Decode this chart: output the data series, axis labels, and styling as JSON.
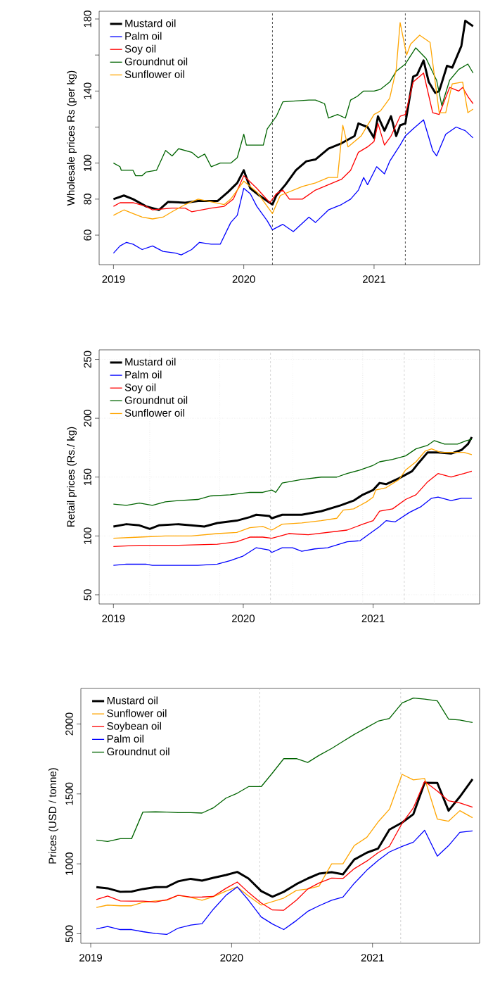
{
  "chart_data": [
    {
      "type": "line",
      "ylabel": "Wholesale prices Rs (per kg)",
      "xlim": [
        2018.89,
        2021.81
      ],
      "ylim": [
        43.6,
        184.3
      ],
      "xticks": [
        2019,
        2020,
        2021
      ],
      "yticks": [
        60,
        80,
        100,
        {
          "value": 120,
          "label": null
        },
        140,
        {
          "value": 160,
          "label": null
        },
        180
      ],
      "legend": "top left",
      "marker": "none",
      "ref_lines": [
        {
          "axis": "x",
          "value": 2020.22,
          "color": "#000000",
          "line_style": "dashed"
        },
        {
          "axis": "x",
          "value": 2021.24,
          "color": "#000000",
          "line_style": "dashed"
        }
      ],
      "series": [
        {
          "name": "Mustard oil",
          "color": "#000000",
          "x": [
            2019.0,
            2019.08,
            2019.15,
            2019.25,
            2019.35,
            2019.42,
            2019.55,
            2019.65,
            2019.8,
            2019.88,
            2019.95,
            2020.0,
            2020.05,
            2020.12,
            2020.18,
            2020.22,
            2020.25,
            2020.32,
            2020.4,
            2020.48,
            2020.55,
            2020.65,
            2020.75,
            2020.85,
            2020.88,
            2020.95,
            2021.0,
            2021.03,
            2021.08,
            2021.13,
            2021.17,
            2021.2,
            2021.24,
            2021.3,
            2021.33,
            2021.38,
            2021.42,
            2021.47,
            2021.5,
            2021.56,
            2021.6,
            2021.67,
            2021.7,
            2021.76
          ],
          "values": [
            80,
            82,
            80,
            76,
            74,
            78.5,
            78,
            79,
            79,
            84,
            89,
            96,
            86,
            82,
            79,
            77,
            82,
            88,
            96,
            101,
            102,
            108,
            111,
            115,
            122,
            120,
            114,
            126,
            118,
            126,
            115,
            121,
            122,
            148,
            149,
            157,
            145,
            139,
            140,
            154,
            153,
            165,
            179,
            176
          ]
        },
        {
          "name": "Palm oil",
          "color": "#0000ff",
          "x": [
            2019.0,
            2019.05,
            2019.1,
            2019.15,
            2019.22,
            2019.3,
            2019.38,
            2019.48,
            2019.52,
            2019.6,
            2019.66,
            2019.75,
            2019.82,
            2019.9,
            2019.95,
            2020.0,
            2020.05,
            2020.1,
            2020.18,
            2020.22,
            2020.3,
            2020.38,
            2020.5,
            2020.55,
            2020.65,
            2020.75,
            2020.82,
            2020.88,
            2020.92,
            2020.95,
            2021.02,
            2021.08,
            2021.12,
            2021.2,
            2021.24,
            2021.3,
            2021.38,
            2021.45,
            2021.48,
            2021.55,
            2021.63,
            2021.7,
            2021.76
          ],
          "values": [
            50,
            54,
            56,
            55,
            52,
            54,
            51,
            50,
            49,
            52,
            56,
            55,
            55,
            67,
            71,
            86,
            83,
            76,
            68,
            63,
            66,
            62,
            70,
            67,
            74,
            77,
            80,
            85,
            92,
            88,
            98,
            94,
            101,
            110,
            115,
            119,
            124,
            107,
            104,
            116,
            120,
            118,
            114
          ]
        },
        {
          "name": "Soy oil",
          "color": "#ff0000",
          "x": [
            2019.0,
            2019.05,
            2019.15,
            2019.25,
            2019.3,
            2019.45,
            2019.55,
            2019.6,
            2019.75,
            2019.85,
            2019.92,
            2020.0,
            2020.1,
            2020.2,
            2020.25,
            2020.3,
            2020.35,
            2020.45,
            2020.55,
            2020.65,
            2020.75,
            2020.82,
            2020.88,
            2020.95,
            2021.0,
            2021.03,
            2021.08,
            2021.13,
            2021.2,
            2021.24,
            2021.3,
            2021.38,
            2021.45,
            2021.5,
            2021.58,
            2021.65,
            2021.68,
            2021.72,
            2021.76
          ],
          "values": [
            76,
            78,
            78,
            76,
            74,
            75,
            75,
            73,
            75,
            76,
            80,
            93,
            86,
            78,
            83,
            85,
            80,
            80,
            85,
            88,
            91,
            96,
            106,
            109,
            112,
            122,
            110,
            115,
            126,
            127,
            145,
            150,
            128,
            127,
            142,
            140,
            142,
            137,
            133
          ]
        },
        {
          "name": "Groundnut oil",
          "color": "#006400",
          "x": [
            2019.0,
            2019.05,
            2019.06,
            2019.15,
            2019.17,
            2019.22,
            2019.25,
            2019.33,
            2019.4,
            2019.45,
            2019.5,
            2019.6,
            2019.65,
            2019.7,
            2019.75,
            2019.82,
            2019.9,
            2019.95,
            2020.0,
            2020.02,
            2020.15,
            2020.18,
            2020.25,
            2020.3,
            2020.5,
            2020.55,
            2020.62,
            2020.65,
            2020.72,
            2020.78,
            2020.82,
            2020.87,
            2020.92,
            2021.0,
            2021.05,
            2021.12,
            2021.17,
            2021.24,
            2021.32,
            2021.4,
            2021.48,
            2021.52,
            2021.58,
            2021.65,
            2021.72,
            2021.76
          ],
          "values": [
            100,
            98,
            96,
            96,
            93,
            93,
            95,
            96,
            107,
            104,
            108,
            106,
            103,
            105,
            98,
            100,
            100,
            103,
            116,
            110,
            110,
            119,
            126,
            134,
            135,
            135,
            133,
            125,
            127,
            125,
            135,
            137,
            140,
            140,
            141,
            145,
            151,
            155,
            164,
            158,
            146,
            132,
            146,
            152,
            155,
            150
          ]
        },
        {
          "name": "Sunflower oil",
          "color": "#ffa500",
          "x": [
            2019.0,
            2019.08,
            2019.15,
            2019.22,
            2019.3,
            2019.38,
            2019.45,
            2019.55,
            2019.65,
            2019.78,
            2019.85,
            2019.9,
            2020.0,
            2020.1,
            2020.22,
            2020.28,
            2020.45,
            2020.55,
            2020.65,
            2020.72,
            2020.76,
            2020.8,
            2020.9,
            2021.0,
            2021.05,
            2021.12,
            2021.17,
            2021.2,
            2021.25,
            2021.28,
            2021.35,
            2021.43,
            2021.5,
            2021.55,
            2021.6,
            2021.68,
            2021.72,
            2021.76
          ],
          "values": [
            71,
            74,
            72,
            70,
            69,
            70,
            73,
            77,
            80,
            78,
            77,
            80,
            90,
            84,
            72,
            82,
            87,
            89,
            92,
            92,
            121,
            109,
            115,
            127,
            129,
            136,
            152,
            178,
            160,
            166,
            171,
            167,
            128,
            128,
            144,
            145,
            128,
            130
          ]
        }
      ]
    },
    {
      "type": "line",
      "ylabel": "Retail prices (Rs./ kg)",
      "xlim": [
        2018.89,
        2021.82
      ],
      "ylim": [
        42.2,
        258.1
      ],
      "xticks": [
        2019,
        2020,
        2021
      ],
      "yticks": [
        50,
        100,
        150,
        200,
        250
      ],
      "legend": "top left",
      "marker": "none",
      "grid": "y",
      "ref_lines": [
        {
          "axis": "x",
          "value": 2020.21,
          "color": "#bebebe",
          "line_style": "dashed"
        },
        {
          "axis": "x",
          "value": 2021.24,
          "color": "#bebebe",
          "line_style": "dashed"
        },
        {
          "axis": "x",
          "value": 2019.28,
          "color": "#d3d3d3",
          "line_style": "dotted"
        },
        {
          "axis": "x",
          "value": 2019.82,
          "color": "#d3d3d3",
          "line_style": "dotted"
        },
        {
          "axis": "x",
          "value": 2020.38,
          "color": "#d3d3d3",
          "line_style": "dotted"
        },
        {
          "axis": "x",
          "value": 2020.92,
          "color": "#d3d3d3",
          "line_style": "dotted"
        },
        {
          "axis": "x",
          "value": 2021.47,
          "color": "#d3d3d3",
          "line_style": "dotted"
        }
      ],
      "series": [
        {
          "name": "Mustard oil",
          "color": "#000000",
          "x": [
            2019.0,
            2019.1,
            2019.2,
            2019.28,
            2019.35,
            2019.5,
            2019.6,
            2019.7,
            2019.8,
            2019.95,
            2020.05,
            2020.1,
            2020.2,
            2020.22,
            2020.3,
            2020.45,
            2020.6,
            2020.75,
            2020.85,
            2020.92,
            2021.0,
            2021.05,
            2021.1,
            2021.2,
            2021.25,
            2021.3,
            2021.35,
            2021.42,
            2021.5,
            2021.6,
            2021.68,
            2021.73,
            2021.76
          ],
          "values": [
            108,
            110,
            109,
            106,
            109,
            110,
            109,
            108,
            111,
            113,
            116,
            118,
            117,
            115,
            118,
            118,
            121,
            126,
            130,
            135,
            139,
            145,
            144,
            149,
            152,
            155,
            162,
            171,
            171,
            170,
            173,
            178,
            184
          ]
        },
        {
          "name": "Palm oil",
          "color": "#0000ff",
          "x": [
            2019.0,
            2019.1,
            2019.25,
            2019.3,
            2019.5,
            2019.65,
            2019.8,
            2019.9,
            2020.0,
            2020.1,
            2020.2,
            2020.22,
            2020.3,
            2020.38,
            2020.45,
            2020.55,
            2020.65,
            2020.8,
            2020.9,
            2020.95,
            2021.05,
            2021.1,
            2021.17,
            2021.28,
            2021.37,
            2021.45,
            2021.5,
            2021.6,
            2021.68,
            2021.76
          ],
          "values": [
            75,
            76,
            76,
            75,
            75,
            75,
            76,
            79,
            83,
            90,
            88,
            86,
            90,
            90,
            87,
            89,
            90,
            95,
            96,
            100,
            108,
            113,
            112,
            120,
            125,
            132,
            133,
            130,
            132,
            132
          ]
        },
        {
          "name": "Soy oil",
          "color": "#ff0000",
          "x": [
            2019.0,
            2019.2,
            2019.5,
            2019.8,
            2019.95,
            2020.05,
            2020.15,
            2020.22,
            2020.35,
            2020.5,
            2020.65,
            2020.8,
            2020.92,
            2021.0,
            2021.05,
            2021.15,
            2021.25,
            2021.33,
            2021.42,
            2021.5,
            2021.6,
            2021.7,
            2021.76
          ],
          "values": [
            91,
            92,
            92,
            93,
            95,
            99,
            99,
            98,
            102,
            101,
            103,
            105,
            110,
            113,
            121,
            123,
            131,
            135,
            146,
            153,
            150,
            153,
            155
          ]
        },
        {
          "name": "Groundnut oil",
          "color": "#006400",
          "x": [
            2019.0,
            2019.1,
            2019.2,
            2019.3,
            2019.4,
            2019.5,
            2019.65,
            2019.75,
            2019.9,
            2020.05,
            2020.15,
            2020.22,
            2020.25,
            2020.3,
            2020.45,
            2020.6,
            2020.72,
            2020.8,
            2020.9,
            2021.0,
            2021.05,
            2021.15,
            2021.25,
            2021.33,
            2021.42,
            2021.47,
            2021.55,
            2021.65,
            2021.72,
            2021.76
          ],
          "values": [
            127,
            126,
            128,
            126,
            129,
            130,
            131,
            134,
            135,
            137,
            137,
            139,
            137,
            145,
            148,
            150,
            150,
            153,
            156,
            160,
            163,
            165,
            168,
            174,
            177,
            181,
            178,
            178,
            181,
            182
          ]
        },
        {
          "name": "Sunflower oil",
          "color": "#ffa500",
          "x": [
            2019.0,
            2019.2,
            2019.4,
            2019.6,
            2019.8,
            2019.95,
            2020.05,
            2020.15,
            2020.22,
            2020.3,
            2020.45,
            2020.6,
            2020.72,
            2020.77,
            2020.85,
            2020.95,
            2021.0,
            2021.02,
            2021.1,
            2021.2,
            2021.25,
            2021.33,
            2021.4,
            2021.45,
            2021.52,
            2021.6,
            2021.7,
            2021.76
          ],
          "values": [
            98,
            99,
            100,
            100,
            102,
            103,
            107,
            108,
            105,
            110,
            111,
            113,
            115,
            122,
            123,
            129,
            133,
            139,
            141,
            148,
            156,
            163,
            172,
            174,
            171,
            171,
            171,
            169
          ]
        }
      ]
    },
    {
      "type": "line",
      "ylabel": "Prices (USD / tonne)",
      "xlim": [
        2018.93,
        2021.76
      ],
      "ylim": [
        432,
        2254
      ],
      "xticks": [
        2019,
        2020,
        2021
      ],
      "yticks": [
        500,
        1000,
        1500,
        2000
      ],
      "legend": "top left",
      "marker": "none",
      "ref_lines": [
        {
          "axis": "x",
          "value": 2020.2,
          "color": "#bebebe",
          "line_style": "dashed"
        },
        {
          "axis": "x",
          "value": 2021.2,
          "color": "#bebebe",
          "line_style": "dashed"
        }
      ],
      "x": [
        2019.04,
        2019.12,
        2019.21,
        2019.29,
        2019.37,
        2019.46,
        2019.54,
        2019.62,
        2019.71,
        2019.79,
        2019.87,
        2019.96,
        2020.04,
        2020.12,
        2020.21,
        2020.29,
        2020.37,
        2020.46,
        2020.54,
        2020.62,
        2020.71,
        2020.79,
        2020.87,
        2020.96,
        2021.04,
        2021.12,
        2021.21,
        2021.29,
        2021.37,
        2021.46,
        2021.54,
        2021.62,
        2021.71
      ],
      "series": [
        {
          "name": "Mustard oil",
          "color": "#000000",
          "values": [
            833,
            825,
            800,
            802,
            820,
            833,
            835,
            875,
            893,
            880,
            900,
            920,
            942,
            895,
            805,
            765,
            800,
            855,
            895,
            930,
            940,
            925,
            1030,
            1080,
            1110,
            1245,
            1295,
            1355,
            1580,
            1578,
            1380,
            1480,
            1605
          ]
        },
        {
          "name": "Sunflower oil",
          "color": "#ffa500",
          "values": [
            688,
            705,
            700,
            700,
            725,
            735,
            740,
            775,
            760,
            740,
            765,
            805,
            835,
            770,
            705,
            730,
            755,
            810,
            820,
            840,
            1000,
            1000,
            1130,
            1190,
            1300,
            1390,
            1640,
            1600,
            1610,
            1320,
            1305,
            1380,
            1330
          ]
        },
        {
          "name": "Soybean oil",
          "color": "#ff0000",
          "values": [
            745,
            770,
            735,
            733,
            733,
            727,
            743,
            775,
            762,
            763,
            767,
            825,
            870,
            795,
            720,
            670,
            668,
            740,
            820,
            863,
            898,
            895,
            965,
            1020,
            1080,
            1125,
            1290,
            1400,
            1590,
            1520,
            1450,
            1435,
            1405
          ]
        },
        {
          "name": "Palm oil",
          "color": "#0000ff",
          "values": [
            535,
            552,
            530,
            530,
            515,
            502,
            495,
            540,
            562,
            572,
            675,
            775,
            835,
            740,
            620,
            570,
            530,
            595,
            660,
            700,
            740,
            762,
            860,
            955,
            1025,
            1085,
            1125,
            1155,
            1240,
            1055,
            1130,
            1225,
            1235
          ]
        },
        {
          "name": "Groundnut oil",
          "color": "#006400",
          "values": [
            1170,
            1160,
            1180,
            1180,
            1370,
            1372,
            1370,
            1366,
            1366,
            1363,
            1400,
            1470,
            1505,
            1552,
            1552,
            1650,
            1752,
            1752,
            1725,
            1775,
            1825,
            1875,
            1925,
            1975,
            2020,
            2040,
            2150,
            2185,
            2178,
            2165,
            2035,
            2028,
            2010
          ]
        }
      ]
    }
  ]
}
